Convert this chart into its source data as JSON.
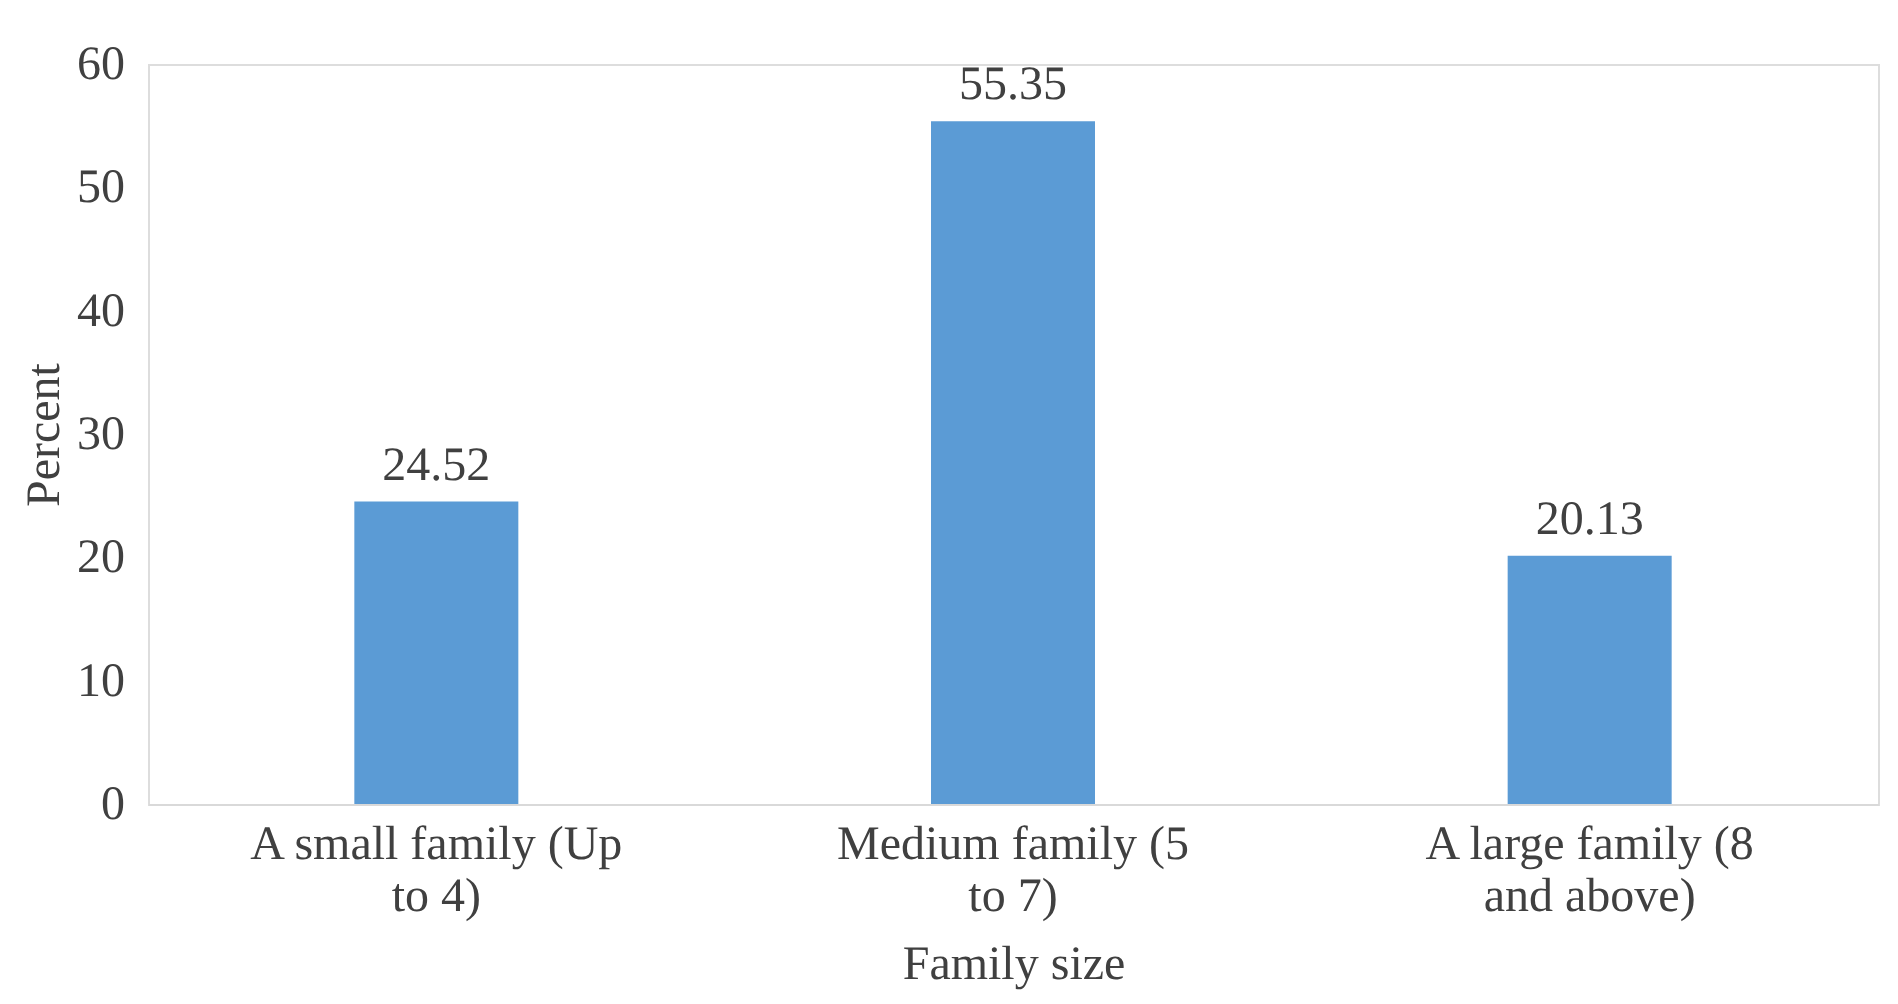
{
  "chart_data": {
    "type": "bar",
    "xlabel": "Family size",
    "ylabel": "Percent",
    "categories": [
      "A small family (Up to 4)",
      "Medium family (5 to 7)",
      "A large family (8 and above)"
    ],
    "values": [
      24.52,
      55.35,
      20.13
    ],
    "color": "#5b9bd5",
    "ylim": [
      0,
      60
    ],
    "yticks": [
      0,
      10,
      20,
      30,
      40,
      50,
      60
    ],
    "grid": false,
    "data_labels": true
  }
}
